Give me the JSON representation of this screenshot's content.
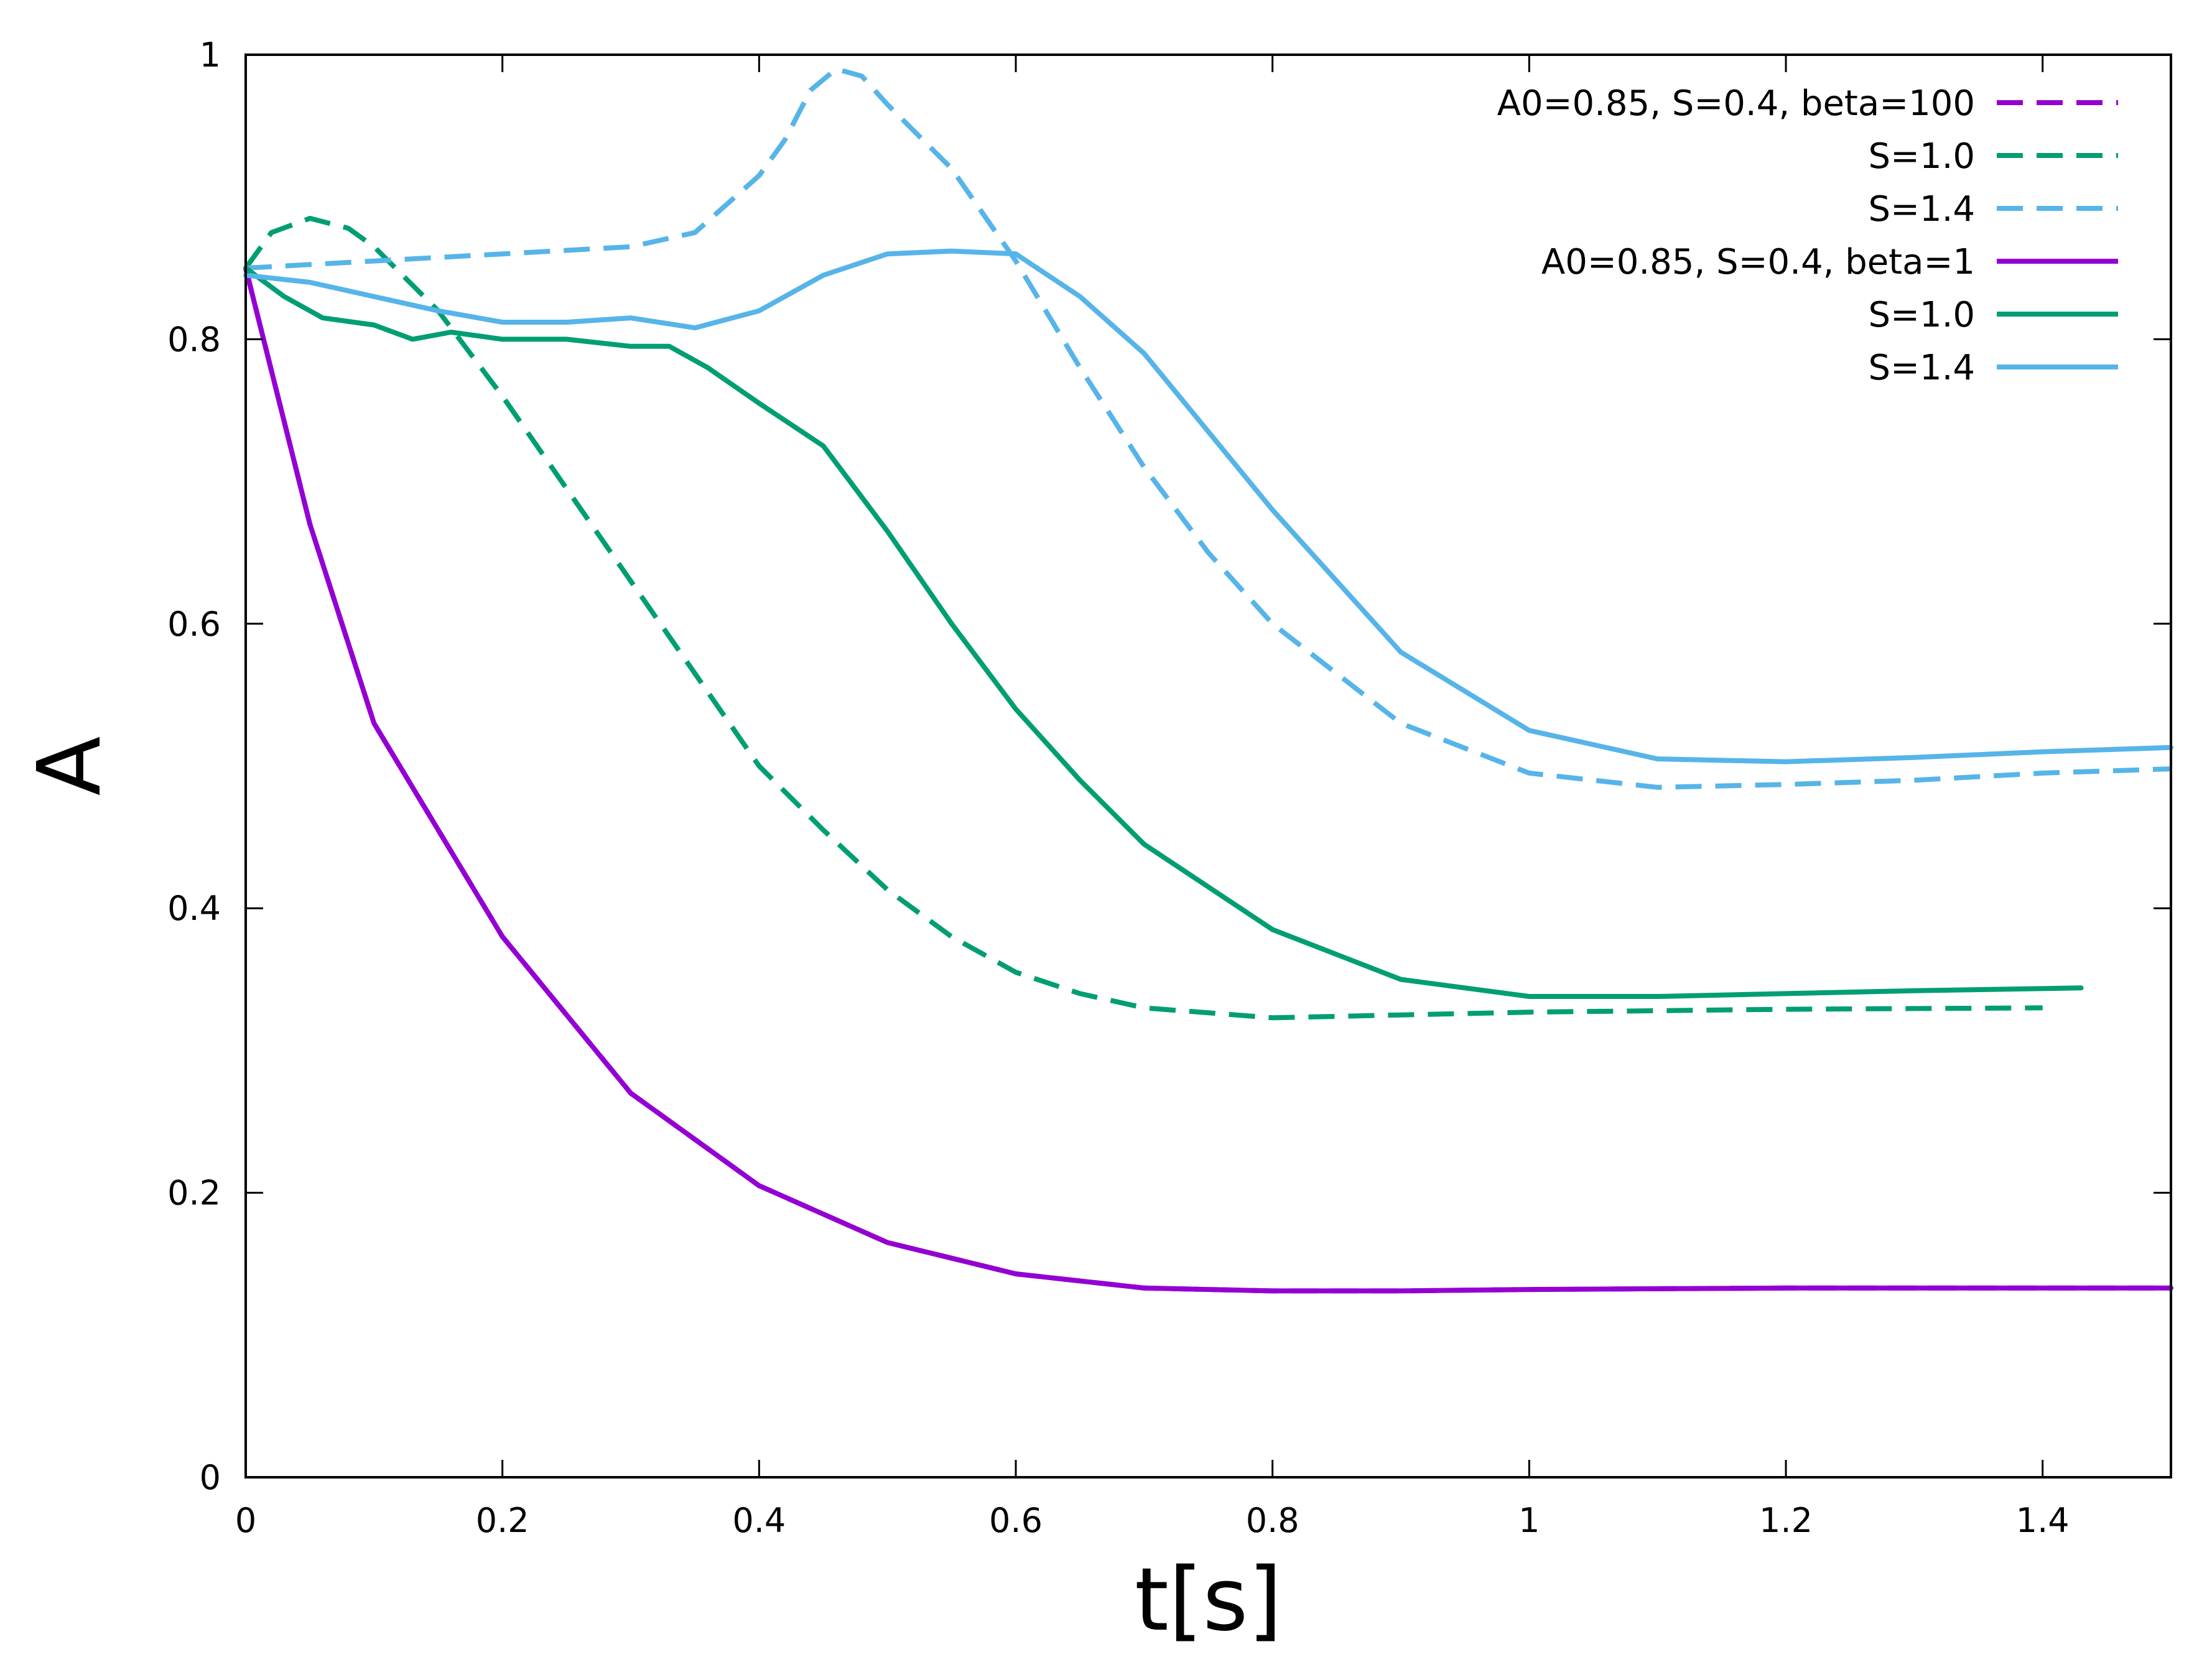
{
  "chart_data": {
    "type": "line",
    "xlabel": "t[s]",
    "ylabel": "A",
    "xlim": [
      0,
      1.5
    ],
    "ylim": [
      0,
      1
    ],
    "xticks": [
      0,
      0.2,
      0.4,
      0.6,
      0.8,
      1,
      1.2,
      1.4
    ],
    "xtick_labels": [
      "0",
      "0.2",
      "0.4",
      "0.6",
      "0.8",
      "1",
      "1.2",
      "1.4"
    ],
    "yticks": [
      0,
      0.2,
      0.4,
      0.6,
      0.8,
      1
    ],
    "ytick_labels": [
      "0",
      "0.2",
      "0.4",
      "0.6",
      "0.8",
      "1"
    ],
    "grid": false,
    "legend_position": "top-right",
    "series": [
      {
        "name": "A0=0.85, S=0.4, beta=100",
        "color": "#9400D3",
        "dash": "dashed",
        "x": [
          0,
          0.05,
          0.1,
          0.2,
          0.3,
          0.4,
          0.5,
          0.6,
          0.7,
          0.8,
          0.9,
          1.0,
          1.2,
          1.4,
          1.5
        ],
        "y": [
          0.85,
          0.67,
          0.53,
          0.38,
          0.27,
          0.205,
          0.165,
          0.143,
          0.133,
          0.131,
          0.131,
          0.132,
          0.133,
          0.133,
          0.133
        ]
      },
      {
        "name": "S=1.0",
        "color": "#009E73",
        "dash": "dashed",
        "x": [
          0,
          0.02,
          0.05,
          0.08,
          0.1,
          0.15,
          0.2,
          0.25,
          0.3,
          0.35,
          0.4,
          0.45,
          0.5,
          0.55,
          0.6,
          0.65,
          0.7,
          0.8,
          0.9,
          1.0,
          1.2,
          1.4
        ],
        "y": [
          0.85,
          0.875,
          0.885,
          0.878,
          0.865,
          0.82,
          0.76,
          0.695,
          0.63,
          0.565,
          0.5,
          0.455,
          0.413,
          0.38,
          0.355,
          0.34,
          0.33,
          0.323,
          0.325,
          0.327,
          0.329,
          0.33
        ]
      },
      {
        "name": "S=1.4",
        "color": "#56B4E9",
        "dash": "dashed",
        "x": [
          0,
          0.1,
          0.2,
          0.3,
          0.35,
          0.4,
          0.42,
          0.44,
          0.46,
          0.48,
          0.5,
          0.55,
          0.6,
          0.65,
          0.7,
          0.75,
          0.8,
          0.9,
          1.0,
          1.1,
          1.2,
          1.3,
          1.4,
          1.5
        ],
        "y": [
          0.85,
          0.855,
          0.86,
          0.865,
          0.875,
          0.915,
          0.94,
          0.975,
          0.99,
          0.985,
          0.965,
          0.92,
          0.855,
          0.78,
          0.71,
          0.65,
          0.6,
          0.53,
          0.495,
          0.485,
          0.487,
          0.49,
          0.495,
          0.498
        ]
      },
      {
        "name": "A0=0.85, S=0.4, beta=1",
        "color": "#9400D3",
        "dash": "solid",
        "x": [
          0,
          0.05,
          0.1,
          0.2,
          0.3,
          0.4,
          0.5,
          0.6,
          0.7,
          0.8,
          0.9,
          1.0,
          1.2,
          1.4,
          1.5
        ],
        "y": [
          0.85,
          0.67,
          0.53,
          0.38,
          0.27,
          0.205,
          0.165,
          0.143,
          0.133,
          0.131,
          0.131,
          0.132,
          0.133,
          0.133,
          0.133
        ]
      },
      {
        "name": "S=1.0",
        "color": "#009E73",
        "dash": "solid",
        "x": [
          0,
          0.03,
          0.06,
          0.1,
          0.13,
          0.16,
          0.2,
          0.25,
          0.3,
          0.33,
          0.36,
          0.4,
          0.45,
          0.5,
          0.55,
          0.6,
          0.65,
          0.7,
          0.8,
          0.9,
          1.0,
          1.1,
          1.2,
          1.3,
          1.43
        ],
        "y": [
          0.85,
          0.83,
          0.815,
          0.81,
          0.8,
          0.805,
          0.8,
          0.8,
          0.795,
          0.795,
          0.78,
          0.755,
          0.725,
          0.665,
          0.6,
          0.54,
          0.49,
          0.445,
          0.385,
          0.35,
          0.338,
          0.338,
          0.34,
          0.342,
          0.344
        ]
      },
      {
        "name": "S=1.4",
        "color": "#56B4E9",
        "dash": "solid",
        "x": [
          0,
          0.05,
          0.1,
          0.15,
          0.2,
          0.25,
          0.3,
          0.35,
          0.4,
          0.45,
          0.5,
          0.55,
          0.6,
          0.65,
          0.7,
          0.8,
          0.9,
          1.0,
          1.1,
          1.2,
          1.3,
          1.4,
          1.5
        ],
        "y": [
          0.845,
          0.84,
          0.83,
          0.82,
          0.812,
          0.812,
          0.815,
          0.808,
          0.82,
          0.845,
          0.86,
          0.862,
          0.86,
          0.83,
          0.79,
          0.68,
          0.58,
          0.525,
          0.505,
          0.503,
          0.506,
          0.51,
          0.513
        ]
      }
    ]
  }
}
